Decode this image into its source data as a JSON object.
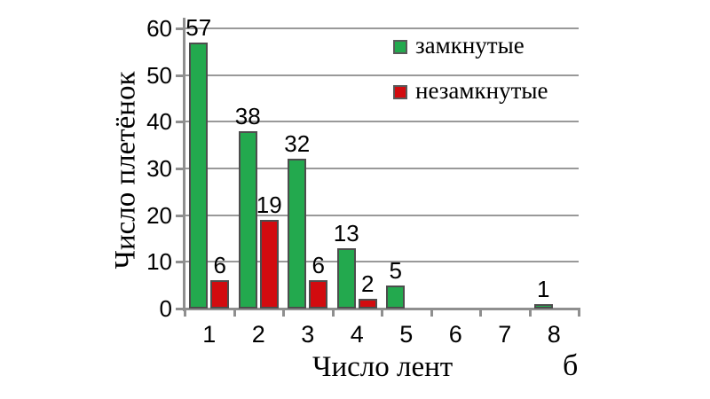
{
  "figure_label": "б",
  "colors": {
    "background": "#ffffff",
    "closed_green": "#23a94e",
    "open_red": "#d20b0f",
    "bar_border": "#4d4d4d",
    "axis_gray": "#8f8f8f",
    "grid_gray": "#999999",
    "text": "#000000"
  },
  "legend": {
    "closed_label": "замкнутые",
    "open_label": "незамкнутые"
  },
  "chart_data": {
    "type": "bar",
    "title": "",
    "xlabel": "Число лент",
    "ylabel": "Число плетёнок",
    "categories": [
      "1",
      "2",
      "3",
      "4",
      "5",
      "6",
      "7",
      "8"
    ],
    "series": [
      {
        "name": "замкнутые",
        "color": "#23a94e",
        "values": [
          57,
          38,
          32,
          13,
          5,
          0,
          0,
          1
        ]
      },
      {
        "name": "незамкнутые",
        "color": "#d20b0f",
        "values": [
          6,
          19,
          6,
          2,
          0,
          0,
          0,
          0
        ]
      }
    ],
    "yticks": [
      0,
      10,
      20,
      30,
      40,
      50,
      60
    ],
    "ylim": [
      0,
      60
    ],
    "grid": true,
    "legend_position": "top-right",
    "bar_value_labels_shown_for_nonzero": true
  }
}
